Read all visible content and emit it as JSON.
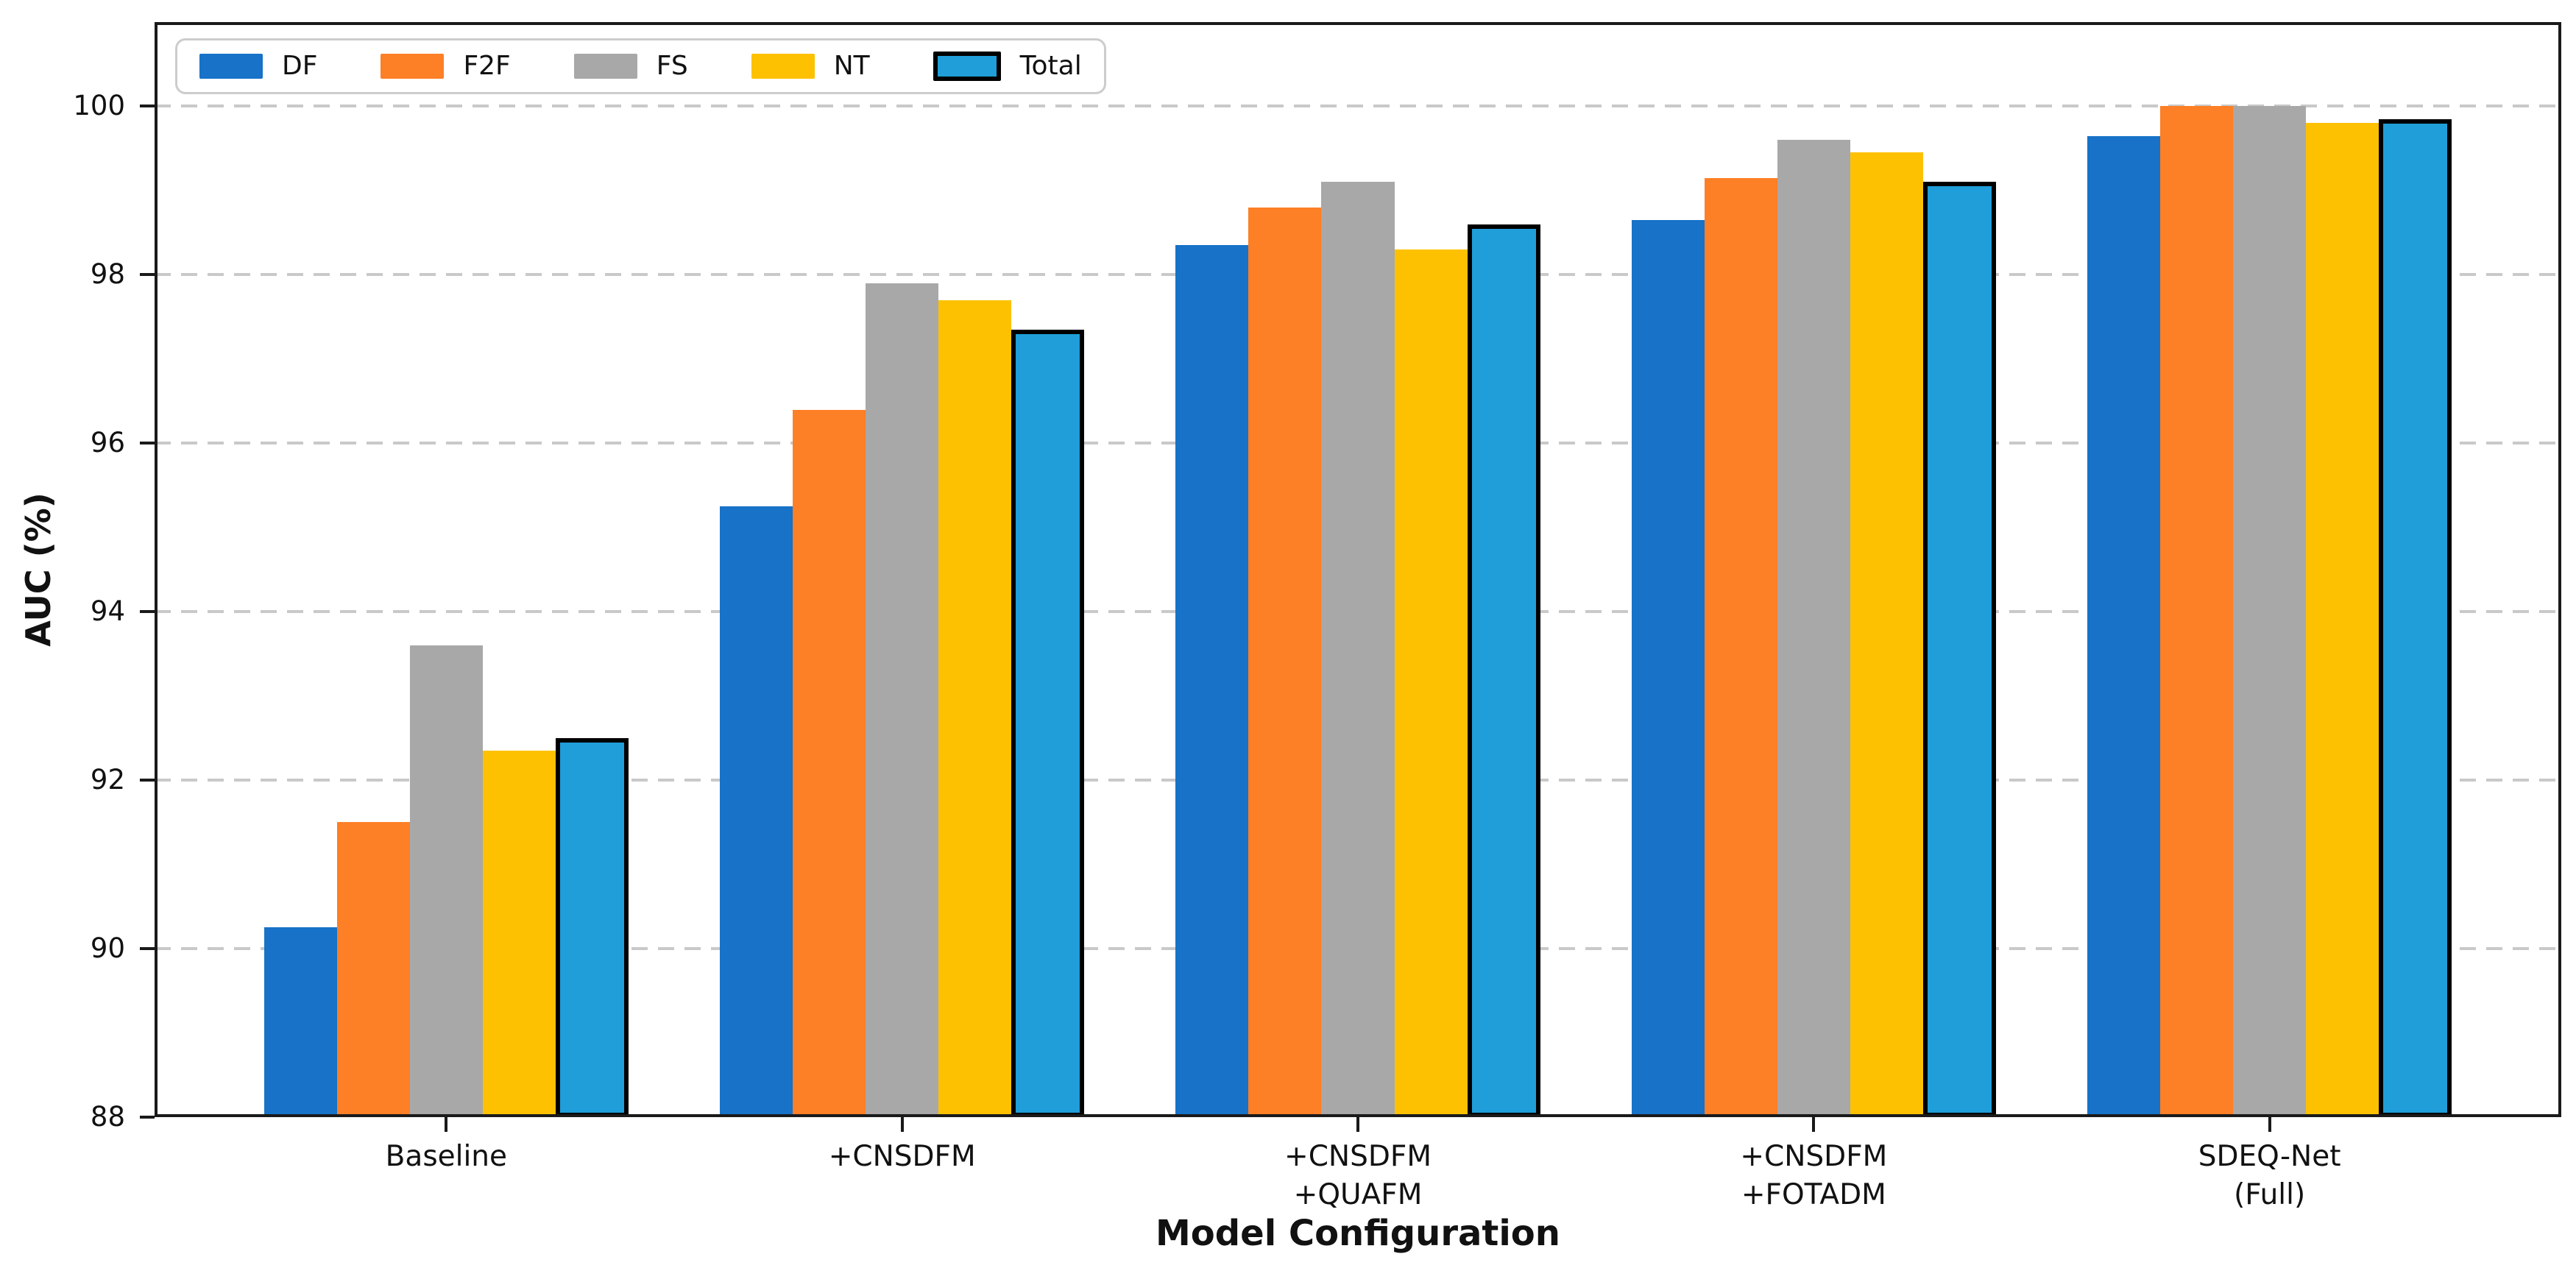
{
  "chart_data": {
    "type": "bar",
    "title": "",
    "xlabel": "Model Configuration",
    "ylabel": "AUC (%)",
    "categories": [
      "Baseline",
      "+CNSDFM",
      "+CNSDFM\n+QUAFM",
      "+CNSDFM\n+FOTADM",
      "SDEQ-Net\n(Full)"
    ],
    "series": [
      {
        "name": "DF",
        "color": "#1772c8",
        "values": [
          90.25,
          95.25,
          98.35,
          98.65,
          99.65
        ]
      },
      {
        "name": "F2F",
        "color": "#fd7f26",
        "values": [
          91.5,
          96.4,
          98.8,
          99.15,
          100.0
        ]
      },
      {
        "name": "FS",
        "color": "#a8a8a8",
        "values": [
          93.6,
          97.9,
          99.1,
          99.6,
          100.0
        ]
      },
      {
        "name": "NT",
        "color": "#fdc101",
        "values": [
          92.35,
          97.7,
          98.3,
          99.45,
          99.8
        ]
      },
      {
        "name": "Total",
        "color": "#1f9ed9",
        "edge": "#000000",
        "values": [
          92.5,
          97.35,
          98.6,
          99.1,
          99.85
        ]
      }
    ],
    "ylim": [
      88,
      101
    ],
    "yticks": [
      88,
      90,
      92,
      94,
      96,
      98,
      100
    ],
    "grid": "horizontal-dashed",
    "legend_position": "upper-left"
  }
}
